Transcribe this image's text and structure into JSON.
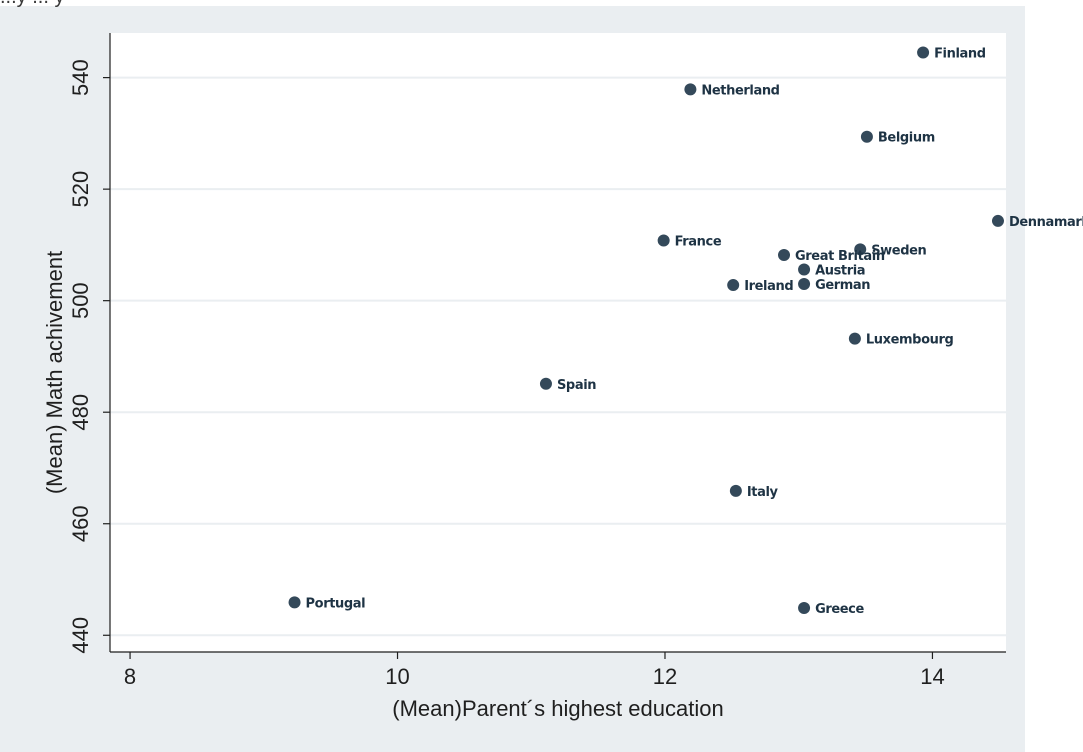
{
  "top_fragment": "...y ... y",
  "colors": {
    "outer_background": "#eaeef1",
    "plot_background": "#ffffff",
    "gridline": "#eaeef1",
    "marker": "#34495a",
    "label": "#1e3344",
    "axis": "#1f1f1f"
  },
  "chart_data": {
    "type": "scatter",
    "xlabel": "(Mean)Parent´s highest education",
    "ylabel": "(Mean) Math achivement",
    "xlim": [
      7.85,
      14.55
    ],
    "ylim": [
      437,
      548
    ],
    "xticks": [
      8,
      10,
      12,
      14
    ],
    "yticks": [
      440,
      460,
      480,
      500,
      520,
      540
    ],
    "grid": "horizontal",
    "marker_labels": true,
    "points": [
      {
        "label": "Finland",
        "x": 13.93,
        "y": 544.5
      },
      {
        "label": "Netherland",
        "x": 12.19,
        "y": 537.9
      },
      {
        "label": "Belgium",
        "x": 13.51,
        "y": 529.4
      },
      {
        "label": "Dennamark",
        "x": 14.49,
        "y": 514.3
      },
      {
        "label": "France",
        "x": 11.99,
        "y": 510.8
      },
      {
        "label": "Sweden",
        "x": 13.46,
        "y": 509.2
      },
      {
        "label": "Great Britain",
        "x": 12.89,
        "y": 508.2
      },
      {
        "label": "Austria",
        "x": 13.04,
        "y": 505.6
      },
      {
        "label": "Ireland",
        "x": 12.51,
        "y": 502.8
      },
      {
        "label": "German",
        "x": 13.04,
        "y": 503.0
      },
      {
        "label": "Luxembourg",
        "x": 13.42,
        "y": 493.2
      },
      {
        "label": "Spain",
        "x": 11.11,
        "y": 485.1
      },
      {
        "label": "Italy",
        "x": 12.53,
        "y": 465.9
      },
      {
        "label": "Portugal",
        "x": 9.23,
        "y": 445.9
      },
      {
        "label": "Greece",
        "x": 13.04,
        "y": 444.9
      }
    ]
  }
}
